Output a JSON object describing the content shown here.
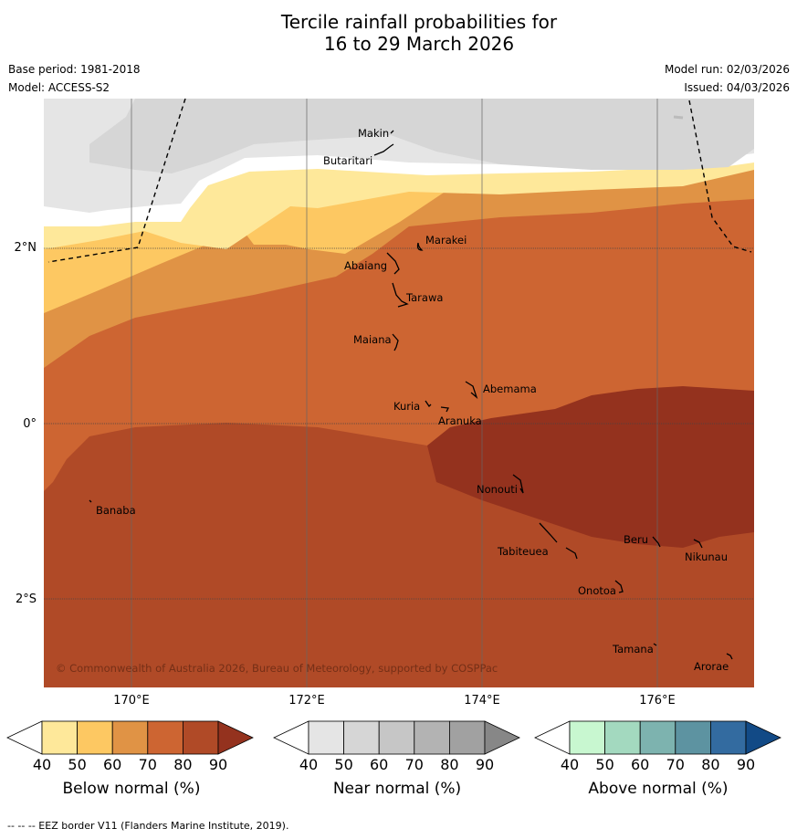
{
  "title": {
    "line1": "Tercile rainfall probabilities for",
    "line2": "16 to 29 March 2026"
  },
  "meta": {
    "base_period": "Base period: 1981-2018",
    "model": "Model: ACCESS-S2",
    "model_run": "Model run: 02/03/2026",
    "issued": "Issued: 04/03/2026"
  },
  "map": {
    "lat_labels": [
      "2°N",
      "0°",
      "2°S"
    ],
    "lon_labels": [
      "170°E",
      "172°E",
      "174°E",
      "176°E"
    ],
    "copyright": "© Commonwealth of Australia 2026, Bureau of Meteorology, supported by COSPPac",
    "places": [
      {
        "name": "Makin"
      },
      {
        "name": "Butaritari"
      },
      {
        "name": "Marakei"
      },
      {
        "name": "Abaiang"
      },
      {
        "name": "Tarawa"
      },
      {
        "name": "Maiana"
      },
      {
        "name": "Abemama"
      },
      {
        "name": "Kuria"
      },
      {
        "name": "Aranuka"
      },
      {
        "name": "Nonouti"
      },
      {
        "name": "Banaba"
      },
      {
        "name": "Beru"
      },
      {
        "name": "Tabiteuea"
      },
      {
        "name": "Nikunau"
      },
      {
        "name": "Onotoa"
      },
      {
        "name": "Tamana"
      },
      {
        "name": "Arorae"
      }
    ],
    "colors": {
      "below_40_50": "#fee89a",
      "below_50_60": "#fdc862",
      "below_60_70": "#e09345",
      "below_70_80": "#cd6532",
      "below_80_90": "#b04a27",
      "below_90": "#94321e",
      "near_40_50": "#e5e5e5",
      "near_50_60": "#d6d6d6"
    }
  },
  "colorbars": {
    "ticks": [
      "40",
      "50",
      "60",
      "70",
      "80",
      "90"
    ],
    "below": {
      "label": "Below normal (%)",
      "colors": [
        "#ffffff",
        "#fee89a",
        "#fdc862",
        "#e09345",
        "#cd6532",
        "#b04a27",
        "#94321e"
      ]
    },
    "near": {
      "label": "Near normal (%)",
      "colors": [
        "#ffffff",
        "#e5e5e5",
        "#d6d6d6",
        "#c6c6c6",
        "#b3b3b3",
        "#a1a1a1",
        "#878787"
      ]
    },
    "above": {
      "label": "Above normal (%)",
      "colors": [
        "#ffffff",
        "#c8f7d0",
        "#a3d9bf",
        "#7db3af",
        "#5d93a1",
        "#336ba0",
        "#124a86"
      ]
    }
  },
  "footer": "--  --  -- EEZ border V11 (Flanders Marine Institute, 2019)."
}
